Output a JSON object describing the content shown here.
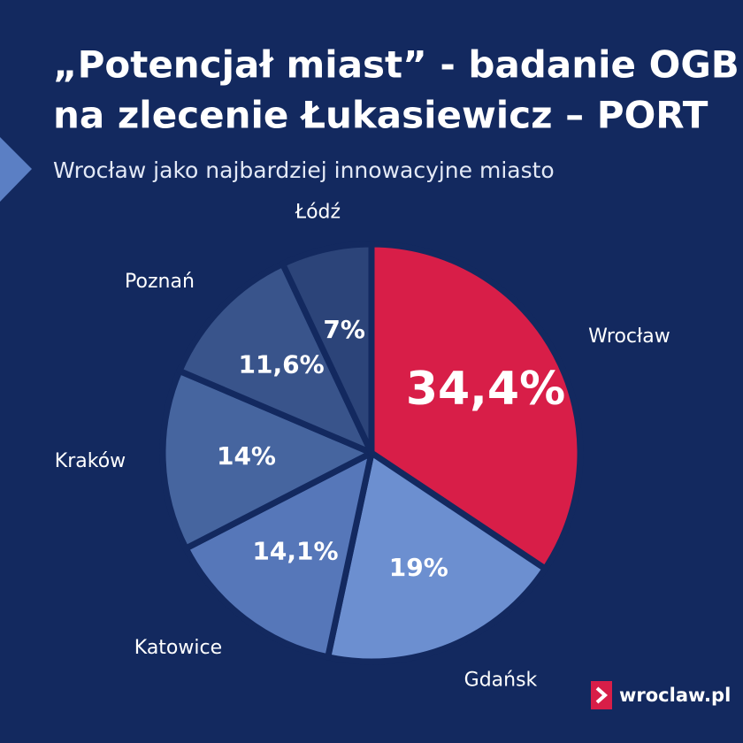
{
  "chart_data": {
    "type": "pie",
    "title": [
      "„Potencjał miast” - badanie OGB",
      "na zlecenie Łukasiewicz – PORT"
    ],
    "subtitle": "Wrocław jako najbardziej innowacyjne miasto",
    "categories": [
      "Wrocław",
      "Gdańsk",
      "Katowice",
      "Kraków",
      "Poznań",
      "Łódź"
    ],
    "values": [
      34.4,
      19,
      14.1,
      14,
      11.6,
      7
    ],
    "value_labels": [
      "34,4%",
      "19%",
      "14,1%",
      "14%",
      "11,6%",
      "7%"
    ],
    "colors": [
      "#d81e48",
      "#6c8fd0",
      "#5677b9",
      "#46659f",
      "#39548b",
      "#2c4479"
    ]
  },
  "logo": "wroclaw.pl"
}
